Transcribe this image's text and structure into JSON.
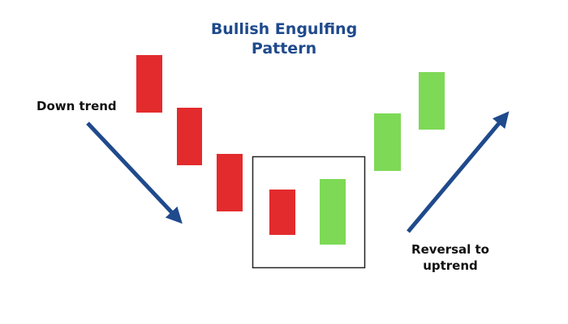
{
  "title": {
    "line1": "Bullish Engulfing",
    "line2": "Pattern"
  },
  "labels": {
    "down_trend": "Down trend",
    "reversal_line1": "Reversal to",
    "reversal_line2": "uptrend"
  },
  "colors": {
    "bearish": "#e32b2d",
    "bullish": "#7ed957",
    "arrow": "#1f4a8c",
    "highlight_box": "#222222"
  },
  "candles": [
    {
      "type": "bearish"
    },
    {
      "type": "bearish"
    },
    {
      "type": "bearish"
    },
    {
      "type": "bearish",
      "highlighted": true
    },
    {
      "type": "bullish",
      "highlighted": true
    },
    {
      "type": "bullish"
    },
    {
      "type": "bullish"
    }
  ],
  "arrows": [
    {
      "direction": "down",
      "icon": "arrow-down-right"
    },
    {
      "direction": "up",
      "icon": "arrow-up-right"
    }
  ]
}
